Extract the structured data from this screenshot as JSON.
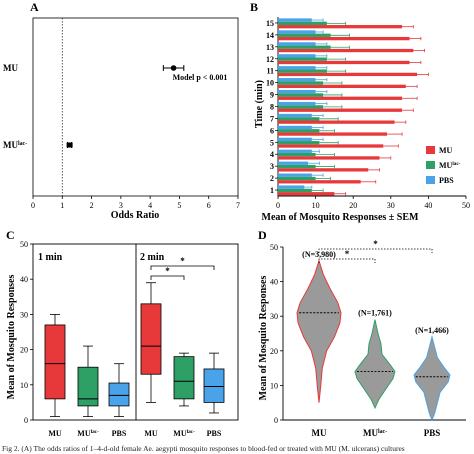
{
  "caption": "Fig 2. (A) The odds ratios of 1–4-d-old female Ae. aegypti mosquito responses to blood-fed or treated with MU (M. ulcerans) cultures",
  "colors": {
    "mu": "#e8393a",
    "mu_lac": "#2ea066",
    "pbs": "#4aa3e8",
    "violin_fill": "#9a9a9a"
  },
  "chart_data": [
    {
      "panel": "A",
      "type": "scatter",
      "xlabel": "Odds Ratio",
      "xlim": [
        0,
        7
      ],
      "xticks": [
        "0",
        "1",
        "2",
        "3",
        "4",
        "5",
        "6",
        "7"
      ],
      "reference_line": 1.0,
      "annotation": "Model p < 0.001",
      "points": [
        {
          "label": "MU",
          "or": 4.8,
          "ci": [
            4.45,
            5.15
          ]
        },
        {
          "label": "MU",
          "label_sup": "lac-",
          "or": 1.25,
          "ci": [
            1.18,
            1.32
          ]
        }
      ]
    },
    {
      "panel": "B",
      "type": "bar",
      "orientation": "horizontal",
      "xlabel": "Mean of Mosquito Responses ± SEM",
      "ylabel": "Time (min)",
      "xlim": [
        0,
        50
      ],
      "xticks": [
        "0",
        "10",
        "20",
        "30",
        "40",
        "50"
      ],
      "categories": [
        "1",
        "2",
        "3",
        "4",
        "5",
        "6",
        "7",
        "8",
        "9",
        "10",
        "11",
        "12",
        "13",
        "14",
        "15"
      ],
      "series": [
        {
          "name": "MU",
          "values": [
            15,
            22,
            24,
            27,
            28,
            29,
            31,
            33,
            33,
            34,
            37,
            35,
            36,
            35,
            33
          ],
          "sem": [
            3,
            4,
            3,
            3,
            4,
            4,
            3,
            3,
            4,
            3,
            3,
            3,
            3,
            3,
            3
          ]
        },
        {
          "name": "MU",
          "name_sup": "lac-",
          "values": [
            9,
            10,
            10,
            10,
            11,
            11,
            11,
            12,
            12,
            12,
            13,
            13,
            14,
            14,
            13
          ],
          "sem": [
            3,
            4,
            5,
            5,
            5,
            4,
            5,
            5,
            5,
            5,
            5,
            5,
            5,
            5,
            5
          ]
        },
        {
          "name": "PBS",
          "values": [
            7,
            9,
            8,
            9,
            9,
            9,
            9,
            10,
            10,
            10,
            10,
            10,
            10,
            10,
            9
          ],
          "sem": [
            2,
            3,
            3,
            2,
            3,
            3,
            3,
            3,
            3,
            3,
            3,
            3,
            3,
            2,
            3
          ]
        }
      ],
      "legend_position": "right"
    },
    {
      "panel": "C",
      "type": "box",
      "ylabel": "Mean of Mosquito Responses",
      "ylim": [
        0,
        50
      ],
      "yticks": [
        "0",
        "10",
        "20",
        "30",
        "40",
        "50"
      ],
      "groups": [
        {
          "title": "1 min",
          "boxes": [
            {
              "label": "MU",
              "min": 1,
              "q1": 6,
              "median": 16,
              "q3": 27,
              "max": 30
            },
            {
              "label": "MU",
              "label_sup": "lac-",
              "min": 1,
              "q1": 4,
              "median": 6,
              "q3": 15,
              "max": 21
            },
            {
              "label": "PBS",
              "min": 1,
              "q1": 4,
              "median": 7,
              "q3": 10.5,
              "max": 16
            }
          ]
        },
        {
          "title": "2 min",
          "boxes": [
            {
              "label": "MU",
              "min": 5,
              "q1": 13,
              "median": 21,
              "q3": 33,
              "max": 39
            },
            {
              "label": "MU",
              "label_sup": "lac-",
              "min": 4,
              "q1": 6,
              "median": 11,
              "q3": 18,
              "max": 19
            },
            {
              "label": "PBS",
              "min": 2,
              "q1": 5,
              "median": 9.5,
              "q3": 14.5,
              "max": 19
            }
          ]
        }
      ],
      "significance": [
        "*",
        "*"
      ]
    },
    {
      "panel": "D",
      "type": "violin",
      "ylabel": "Mean of Mosquito Responses",
      "ylim": [
        0,
        50
      ],
      "yticks": [
        "0",
        "10",
        "20",
        "30",
        "40",
        "50"
      ],
      "categories": [
        "MU",
        "MU",
        "PBS"
      ],
      "category_sups": [
        "",
        "lac-",
        ""
      ],
      "n_labels": [
        "(N=3,980)",
        "(N=1,761)",
        "(N=1,466)"
      ],
      "medians": [
        31,
        14,
        12.5
      ],
      "ranges": [
        [
          5,
          46
        ],
        [
          3.5,
          29
        ],
        [
          0,
          24
        ]
      ],
      "significance": [
        "*",
        "*"
      ]
    }
  ]
}
